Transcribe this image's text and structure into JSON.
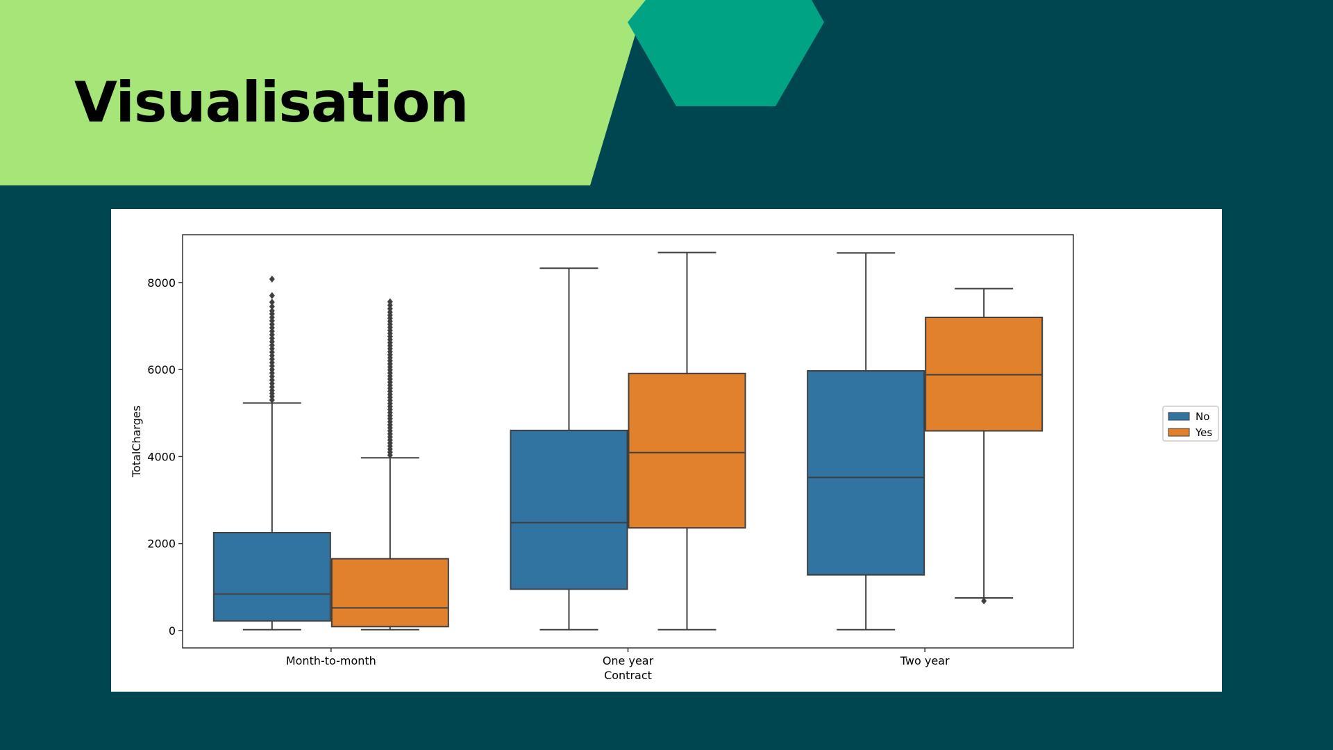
{
  "slide": {
    "title": "Visualisation",
    "colors": {
      "background": "#004651",
      "title_band": "#a6e578",
      "hexagon": "#00a383",
      "series_no": "#3274a1",
      "series_yes": "#e1812c"
    }
  },
  "chart_data": {
    "type": "box",
    "xlabel": "Contract",
    "ylabel": "TotalCharges",
    "categories": [
      "Month-to-month",
      "One year",
      "Two year"
    ],
    "ylim": [
      -400,
      9100
    ],
    "yticks": [
      0,
      2000,
      4000,
      6000,
      8000
    ],
    "grid": false,
    "legend_position": "right",
    "series": [
      {
        "name": "No",
        "color": "#3274a1",
        "boxes": [
          {
            "whisker_low": 20,
            "q1": 220,
            "median": 840,
            "q3": 2250,
            "whisker_high": 5230,
            "outliers": [
              5300,
              5380,
              5450,
              5520,
              5600,
              5680,
              5760,
              5840,
              5920,
              6000,
              6080,
              6160,
              6240,
              6320,
              6400,
              6480,
              6560,
              6640,
              6720,
              6800,
              6880,
              6960,
              7040,
              7120,
              7200,
              7280,
              7350,
              7450,
              7550,
              7700,
              8080
            ]
          },
          {
            "whisker_low": 20,
            "q1": 950,
            "median": 2480,
            "q3": 4600,
            "whisker_high": 8330,
            "outliers": []
          },
          {
            "whisker_low": 20,
            "q1": 1280,
            "median": 3520,
            "q3": 5970,
            "whisker_high": 8680,
            "outliers": []
          }
        ]
      },
      {
        "name": "Yes",
        "color": "#e1812c",
        "boxes": [
          {
            "whisker_low": 20,
            "q1": 90,
            "median": 520,
            "q3": 1650,
            "whisker_high": 3970,
            "outliers": [
              4030,
              4100,
              4170,
              4240,
              4310,
              4380,
              4450,
              4520,
              4590,
              4660,
              4730,
              4800,
              4870,
              4940,
              5010,
              5080,
              5150,
              5220,
              5290,
              5360,
              5430,
              5500,
              5570,
              5640,
              5710,
              5780,
              5850,
              5920,
              5990,
              6060,
              6130,
              6200,
              6270,
              6340,
              6410,
              6480,
              6550,
              6620,
              6690,
              6760,
              6830,
              6900,
              6970,
              7040,
              7110,
              7180,
              7250,
              7320,
              7400,
              7480,
              7560
            ]
          },
          {
            "whisker_low": 20,
            "q1": 2360,
            "median": 4090,
            "q3": 5910,
            "whisker_high": 8690,
            "outliers": []
          },
          {
            "whisker_low": 750,
            "q1": 4590,
            "median": 5880,
            "q3": 7200,
            "whisker_high": 7860,
            "outliers": [
              680
            ]
          }
        ]
      }
    ]
  }
}
